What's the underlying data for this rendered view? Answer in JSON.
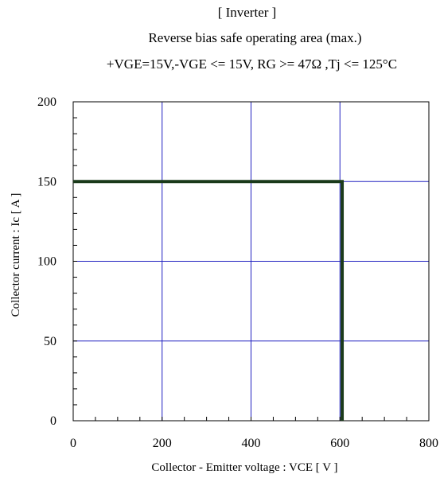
{
  "header": {
    "line1": "[ Inverter ]",
    "line2": "Reverse bias safe operating area (max.)",
    "line3": "+VGE=15V,-VGE <= 15V, RG >= 47Ω ,Tj <= 125°C"
  },
  "chart_data": {
    "type": "line",
    "title": "Reverse bias safe operating area (max.)",
    "xlabel": "Collector - Emitter voltage  :  VCE  [ V ]",
    "ylabel": "Collector current  : Ic  [ A ]",
    "xlim": [
      0,
      800
    ],
    "ylim": [
      0,
      200
    ],
    "xticks": [
      0,
      200,
      400,
      600,
      800
    ],
    "yticks": [
      0,
      50,
      100,
      150,
      200
    ],
    "xtick_labels": [
      "0",
      "200",
      "400",
      "600",
      "800"
    ],
    "ytick_labels": [
      "0",
      "50",
      "100",
      "150",
      "200"
    ],
    "grid": true,
    "line_color": "#1a3a1a",
    "grid_color": "#2020c0",
    "series": [
      {
        "x": [
          0,
          605,
          605
        ],
        "y": [
          150,
          150,
          0
        ]
      }
    ]
  }
}
